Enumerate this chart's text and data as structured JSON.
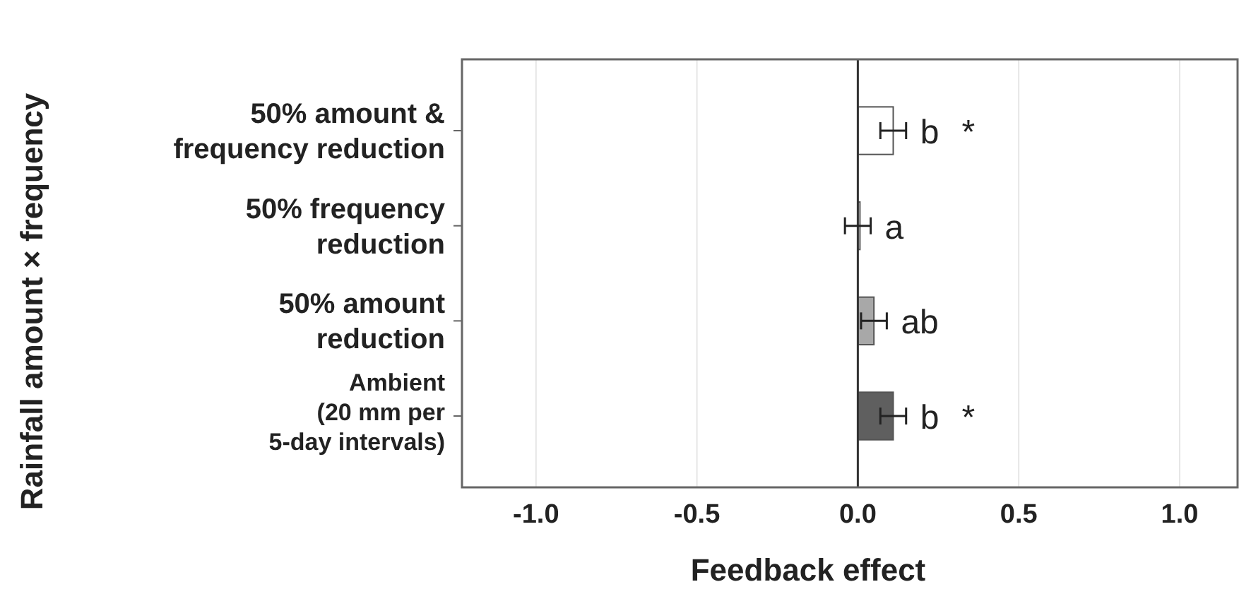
{
  "chart_data": {
    "type": "bar",
    "orientation": "horizontal",
    "ylabel": "Rainfall amount × frequency",
    "xlabel": "Feedback effect",
    "categories": [
      "50% amount &\nfrequency reduction",
      "50% frequency\nreduction",
      "50% amount\nreduction",
      "Ambient\n(20 mm per\n5-day intervals)"
    ],
    "values": [
      0.11,
      0.0,
      0.05,
      0.11
    ],
    "colors": [
      "#ffffff",
      "#ffffff",
      "#a8a8a8",
      "#5f5f5f"
    ],
    "errors": [
      0.04,
      0.04,
      0.04,
      0.04
    ],
    "xlim": [
      -1.23,
      1.18
    ],
    "xticks": [
      {
        "value": -1,
        "label": "-1.0"
      },
      -0.5,
      {
        "value": 0,
        "label": "0.0"
      },
      0.5,
      {
        "value": 1,
        "label": "1.0"
      }
    ],
    "grid": "x",
    "annotations": [
      "b *",
      "a",
      "ab",
      "b *"
    ]
  }
}
